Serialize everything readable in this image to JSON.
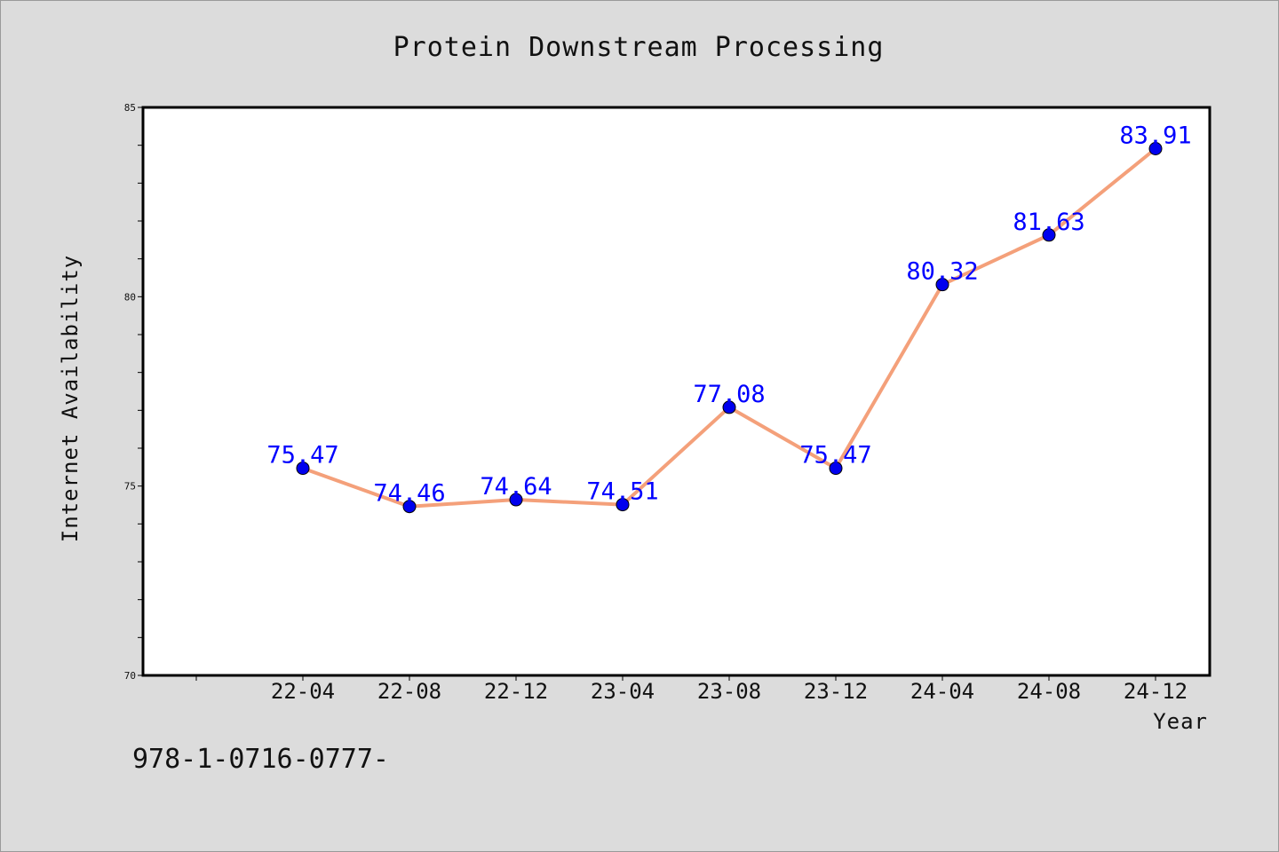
{
  "chart_data": {
    "type": "line",
    "title": "Protein Downstream Processing",
    "xlabel": "Year",
    "ylabel": "Internet Availability",
    "categories": [
      "22-04",
      "22-08",
      "22-12",
      "23-04",
      "23-08",
      "23-12",
      "24-04",
      "24-08",
      "24-12"
    ],
    "series": [
      {
        "values": [
          75.47,
          74.46,
          74.64,
          74.51,
          77.08,
          75.47,
          80.32,
          81.63,
          83.91
        ],
        "line_color": "#f4a07a",
        "marker_color": "#0000ee",
        "label_color": "#0000ff"
      }
    ],
    "ylim": [
      70,
      85
    ],
    "y_ticks": [
      "70",
      "75",
      "80",
      "85"
    ],
    "grid": false,
    "legend": "none"
  },
  "footer": {
    "text": "978-1-0716-0777-"
  },
  "colors": {
    "background": "#dcdcdc",
    "plot_background": "#ffffff",
    "axis": "#000000"
  }
}
